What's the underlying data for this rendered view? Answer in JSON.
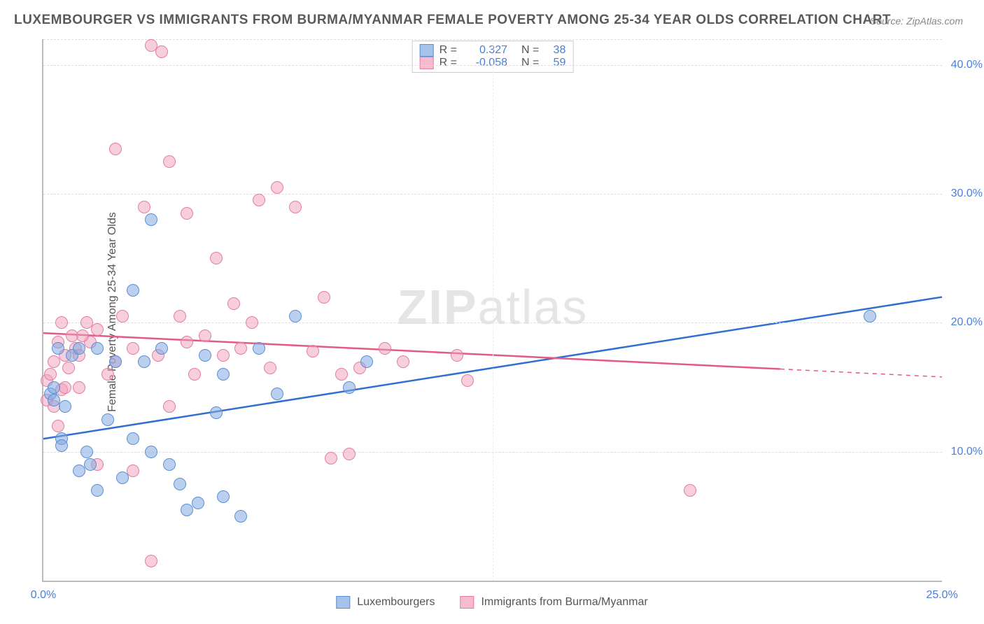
{
  "title": "LUXEMBOURGER VS IMMIGRANTS FROM BURMA/MYANMAR FEMALE POVERTY AMONG 25-34 YEAR OLDS CORRELATION CHART",
  "source": "Source: ZipAtlas.com",
  "ylabel": "Female Poverty Among 25-34 Year Olds",
  "watermark": "ZIPatlas",
  "chart": {
    "type": "scatter",
    "xlim": [
      0,
      25
    ],
    "ylim": [
      0,
      42
    ],
    "xticks": [
      0,
      25
    ],
    "xtick_labels": [
      "0.0%",
      "25.0%"
    ],
    "yticks": [
      10,
      20,
      30,
      40
    ],
    "ytick_labels": [
      "10.0%",
      "20.0%",
      "30.0%",
      "40.0%"
    ],
    "xgrid": [
      12.5
    ],
    "background_color": "#ffffff",
    "grid_color": "#dddddd",
    "marker_radius": 9,
    "series": [
      {
        "name": "Luxembourgers",
        "color_fill": "#81aae0",
        "color_stroke": "#5b8fd6",
        "R": "0.327",
        "N": "38",
        "trend": {
          "x1": 0,
          "y1": 11.0,
          "x2": 25,
          "y2": 22.0,
          "color": "#2f6fd0",
          "width": 2.5,
          "dash_from_x": null
        },
        "points": [
          [
            0.2,
            14.5
          ],
          [
            0.3,
            14.0
          ],
          [
            0.4,
            18.0
          ],
          [
            0.5,
            11.0
          ],
          [
            0.5,
            10.5
          ],
          [
            0.6,
            13.5
          ],
          [
            0.8,
            17.5
          ],
          [
            1.0,
            18.0
          ],
          [
            1.0,
            8.5
          ],
          [
            1.2,
            10.0
          ],
          [
            1.3,
            9.0
          ],
          [
            1.5,
            18.0
          ],
          [
            1.5,
            7.0
          ],
          [
            1.8,
            12.5
          ],
          [
            2.0,
            17.0
          ],
          [
            2.2,
            8.0
          ],
          [
            2.5,
            22.5
          ],
          [
            2.5,
            11.0
          ],
          [
            2.8,
            17.0
          ],
          [
            3.0,
            28.0
          ],
          [
            3.0,
            10.0
          ],
          [
            3.3,
            18.0
          ],
          [
            3.5,
            9.0
          ],
          [
            3.8,
            7.5
          ],
          [
            4.0,
            5.5
          ],
          [
            4.3,
            6.0
          ],
          [
            4.5,
            17.5
          ],
          [
            4.8,
            13.0
          ],
          [
            5.0,
            16.0
          ],
          [
            5.0,
            6.5
          ],
          [
            5.5,
            5.0
          ],
          [
            6.0,
            18.0
          ],
          [
            6.5,
            14.5
          ],
          [
            7.0,
            20.5
          ],
          [
            8.5,
            15.0
          ],
          [
            9.0,
            17.0
          ],
          [
            23.0,
            20.5
          ],
          [
            0.3,
            15.0
          ]
        ]
      },
      {
        "name": "Immigrants from Burma/Myanmar",
        "color_fill": "#f0a0b9",
        "color_stroke": "#e47da0",
        "R": "-0.058",
        "N": "59",
        "trend": {
          "x1": 0,
          "y1": 19.2,
          "x2": 25,
          "y2": 15.8,
          "color": "#e25b85",
          "width": 2.5,
          "dash_from_x": 20.5
        },
        "points": [
          [
            0.1,
            14.0
          ],
          [
            0.1,
            15.5
          ],
          [
            0.2,
            16.0
          ],
          [
            0.3,
            17.0
          ],
          [
            0.3,
            13.5
          ],
          [
            0.4,
            18.5
          ],
          [
            0.5,
            20.0
          ],
          [
            0.5,
            14.8
          ],
          [
            0.6,
            17.5
          ],
          [
            0.7,
            16.5
          ],
          [
            0.8,
            19.0
          ],
          [
            0.9,
            18.0
          ],
          [
            1.0,
            15.0
          ],
          [
            1.0,
            17.5
          ],
          [
            1.2,
            20.0
          ],
          [
            1.3,
            18.5
          ],
          [
            1.5,
            19.5
          ],
          [
            1.5,
            9.0
          ],
          [
            1.8,
            16.0
          ],
          [
            2.0,
            33.5
          ],
          [
            2.0,
            17.0
          ],
          [
            2.2,
            20.5
          ],
          [
            2.5,
            18.0
          ],
          [
            2.5,
            8.5
          ],
          [
            2.8,
            29.0
          ],
          [
            3.0,
            1.5
          ],
          [
            3.0,
            41.5
          ],
          [
            3.2,
            17.5
          ],
          [
            3.3,
            41.0
          ],
          [
            3.5,
            13.5
          ],
          [
            3.5,
            32.5
          ],
          [
            3.8,
            20.5
          ],
          [
            4.0,
            18.5
          ],
          [
            4.0,
            28.5
          ],
          [
            4.2,
            16.0
          ],
          [
            4.5,
            19.0
          ],
          [
            4.8,
            25.0
          ],
          [
            5.0,
            17.5
          ],
          [
            5.3,
            21.5
          ],
          [
            5.5,
            18.0
          ],
          [
            5.8,
            20.0
          ],
          [
            6.0,
            29.5
          ],
          [
            6.3,
            16.5
          ],
          [
            6.5,
            30.5
          ],
          [
            7.0,
            29.0
          ],
          [
            7.5,
            17.8
          ],
          [
            7.8,
            22.0
          ],
          [
            8.0,
            9.5
          ],
          [
            8.3,
            16.0
          ],
          [
            8.5,
            9.8
          ],
          [
            8.8,
            16.5
          ],
          [
            9.5,
            18.0
          ],
          [
            10.0,
            17.0
          ],
          [
            11.5,
            17.5
          ],
          [
            11.8,
            15.5
          ],
          [
            18.0,
            7.0
          ],
          [
            0.4,
            12.0
          ],
          [
            0.6,
            15.0
          ],
          [
            1.1,
            19.0
          ]
        ]
      }
    ],
    "yaxis_color": "#4a7fd6",
    "xaxis_color": "#4a7fd6"
  },
  "legend_top_labels": {
    "R": "R =",
    "N": "N ="
  },
  "legend_bottom": {
    "series1": "Luxembourgers",
    "series2": "Immigrants from Burma/Myanmar"
  }
}
